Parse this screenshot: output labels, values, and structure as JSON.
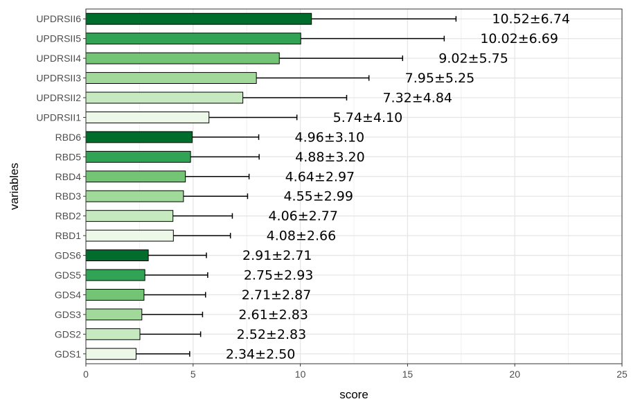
{
  "chart_data": {
    "type": "bar",
    "orientation": "horizontal",
    "xlabel": "score",
    "ylabel": "variables",
    "xlim": [
      0,
      25
    ],
    "xticks": [
      0,
      5,
      10,
      15,
      20,
      25
    ],
    "grid": true,
    "error_bars": true,
    "categories": [
      "UPDRSII6",
      "UPDRSII5",
      "UPDRSII4",
      "UPDRSII3",
      "UPDRSII2",
      "UPDRSII1",
      "RBD6",
      "RBD5",
      "RBD4",
      "RBD3",
      "RBD2",
      "RBD1",
      "GDS6",
      "GDS5",
      "GDS4",
      "GDS3",
      "GDS2",
      "GDS1"
    ],
    "values": [
      10.52,
      10.02,
      9.02,
      7.95,
      7.32,
      5.74,
      4.96,
      4.88,
      4.64,
      4.55,
      4.06,
      4.08,
      2.91,
      2.75,
      2.71,
      2.61,
      2.52,
      2.34
    ],
    "errors": [
      6.74,
      6.69,
      5.75,
      5.25,
      4.84,
      4.1,
      3.1,
      3.2,
      2.97,
      2.99,
      2.77,
      2.66,
      2.71,
      2.93,
      2.87,
      2.83,
      2.83,
      2.5
    ],
    "labels": [
      "10.52±6.74",
      "10.02±6.69",
      "9.02±5.75",
      "7.95±5.25",
      "7.32±4.84",
      "5.74±4.10",
      "4.96±3.10",
      "4.88±3.20",
      "4.64±2.97",
      "4.55±2.99",
      "4.06±2.77",
      "4.08±2.66",
      "2.91±2.71",
      "2.75±2.93",
      "2.71±2.87",
      "2.61±2.83",
      "2.52±2.83",
      "2.34±2.50"
    ],
    "colors": [
      "#006d2c",
      "#31a354",
      "#74c476",
      "#a1d99b",
      "#c7e9c0",
      "#edf8e9",
      "#006d2c",
      "#31a354",
      "#74c476",
      "#a1d99b",
      "#c7e9c0",
      "#edf8e9",
      "#006d2c",
      "#31a354",
      "#74c476",
      "#a1d99b",
      "#c7e9c0",
      "#edf8e9"
    ]
  }
}
